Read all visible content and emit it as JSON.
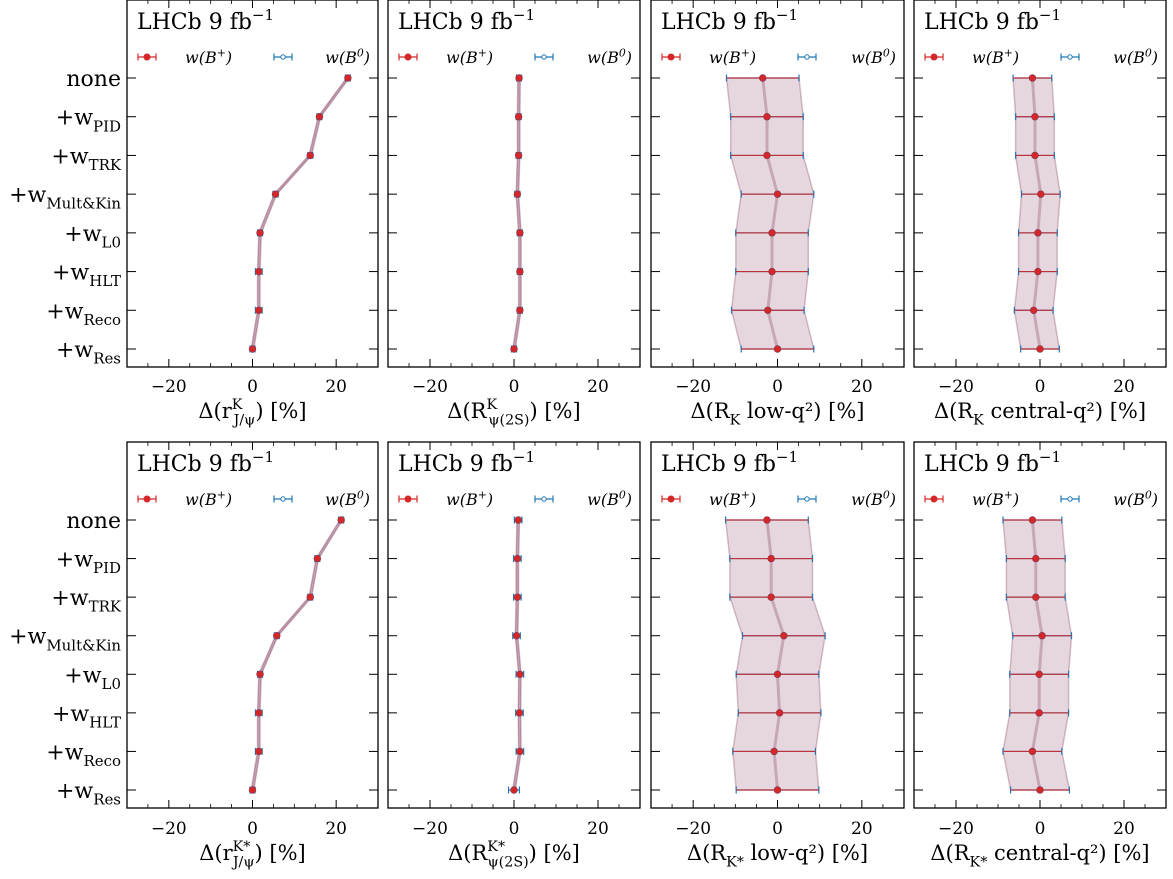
{
  "figure": {
    "categories_top": [
      "none",
      "+w_PID",
      "+w_TRK",
      "+w_Mult&Kin",
      "+w_L0",
      "+w_HLT",
      "+w_Reco",
      "+w_Res"
    ],
    "categories_bottom": [
      "none",
      "+w_PID",
      "+w_TRK",
      "+w_Mult&Kin",
      "+w_L0",
      "+w_HLT",
      "+w_Reco",
      "+w_Res"
    ],
    "colors": {
      "B_plus": "#d62728",
      "B_zero": "#1f77b4",
      "band": "#8c4a6a"
    }
  },
  "chart_data": [
    {
      "type": "scatter",
      "label": "LHCb 9 fb^-1",
      "xlabel": "Δ(r^K_J/ψ) [%]",
      "xlim": [
        -30,
        30
      ],
      "xticks": [
        -20,
        0,
        20
      ],
      "legend": [
        "w(B+)",
        "w(B0)"
      ],
      "legend_position": "top",
      "categories": [
        "none",
        "+w_PID",
        "+w_TRK",
        "+w_Mult&Kin",
        "+w_L0",
        "+w_HLT",
        "+w_Reco",
        "+w_Res"
      ],
      "series": [
        {
          "name": "w(B+)",
          "values": [
            22.8,
            16.0,
            13.8,
            5.5,
            1.8,
            1.5,
            1.5,
            0.0
          ],
          "errors": [
            0.3,
            0.3,
            0.3,
            0.3,
            0.3,
            0.3,
            0.3,
            0.3
          ]
        },
        {
          "name": "w(B0)",
          "values": [
            22.8,
            16.0,
            13.8,
            5.5,
            1.8,
            1.5,
            1.5,
            0.0
          ],
          "errors": [
            0.6,
            0.6,
            0.6,
            0.6,
            0.6,
            0.8,
            0.8,
            0.6
          ]
        }
      ]
    },
    {
      "type": "scatter",
      "label": "LHCb 9 fb^-1",
      "xlabel": "Δ(R^K_ψ(2S)) [%]",
      "xlim": [
        -30,
        30
      ],
      "xticks": [
        -20,
        0,
        20
      ],
      "legend": [
        "w(B+)",
        "w(B0)"
      ],
      "legend_position": "top",
      "categories": [
        "none",
        "+w_PID",
        "+w_TRK",
        "+w_Mult&Kin",
        "+w_L0",
        "+w_HLT",
        "+w_Reco",
        "+w_Res"
      ],
      "series": [
        {
          "name": "w(B+)",
          "values": [
            1.2,
            1.1,
            1.1,
            0.8,
            1.4,
            1.4,
            1.4,
            0.0
          ],
          "errors": [
            0.3,
            0.3,
            0.3,
            0.3,
            0.3,
            0.3,
            0.3,
            0.3
          ]
        },
        {
          "name": "w(B0)",
          "values": [
            1.2,
            1.1,
            1.1,
            0.8,
            1.4,
            1.4,
            1.4,
            0.0
          ],
          "errors": [
            0.6,
            0.6,
            0.6,
            0.6,
            0.6,
            0.6,
            0.6,
            0.6
          ]
        }
      ]
    },
    {
      "type": "scatter",
      "label": "LHCb 9 fb^-1",
      "xlabel": "Δ(R_K low-q²) [%]",
      "xlim": [
        -30,
        30
      ],
      "xticks": [
        -20,
        0,
        20
      ],
      "legend": [
        "w(B+)",
        "w(B0)"
      ],
      "legend_position": "top",
      "categories": [
        "none",
        "+w_PID",
        "+w_TRK",
        "+w_Mult&Kin",
        "+w_L0",
        "+w_HLT",
        "+w_Reco",
        "+w_Res"
      ],
      "series": [
        {
          "name": "w(B+)",
          "values": [
            -3.5,
            -2.5,
            -2.5,
            0.0,
            -1.3,
            -1.3,
            -2.3,
            0.0
          ],
          "errors": [
            8.6,
            8.6,
            8.6,
            8.6,
            8.6,
            8.6,
            8.6,
            8.6
          ]
        },
        {
          "name": "w(B0)",
          "values": [
            -3.5,
            -2.5,
            -2.5,
            0.0,
            -1.3,
            -1.3,
            -2.3,
            0.0
          ],
          "errors": [
            8.6,
            8.6,
            8.6,
            8.6,
            8.6,
            8.6,
            8.6,
            8.6
          ]
        }
      ]
    },
    {
      "type": "scatter",
      "label": "LHCb 9 fb^-1",
      "xlabel": "Δ(R_K central-q²) [%]",
      "xlim": [
        -30,
        30
      ],
      "xticks": [
        -20,
        0,
        20
      ],
      "legend": [
        "w(B+)",
        "w(B0)"
      ],
      "legend_position": "top",
      "categories": [
        "none",
        "+w_PID",
        "+w_TRK",
        "+w_Mult&Kin",
        "+w_L0",
        "+w_HLT",
        "+w_Reco",
        "+w_Res"
      ],
      "series": [
        {
          "name": "w(B+)",
          "values": [
            -1.8,
            -1.2,
            -1.2,
            0.2,
            -0.5,
            -0.5,
            -1.5,
            0.0
          ],
          "errors": [
            4.6,
            4.6,
            4.6,
            4.6,
            4.6,
            4.6,
            4.6,
            4.6
          ]
        },
        {
          "name": "w(B0)",
          "values": [
            -1.8,
            -1.2,
            -1.2,
            0.2,
            -0.5,
            -0.5,
            -1.5,
            0.0
          ],
          "errors": [
            4.6,
            4.6,
            4.6,
            4.6,
            4.6,
            4.6,
            4.6,
            4.6
          ]
        }
      ]
    },
    {
      "type": "scatter",
      "label": "LHCb 9 fb^-1",
      "xlabel": "Δ(r^K*_J/ψ) [%]",
      "xlim": [
        -30,
        30
      ],
      "xticks": [
        -20,
        0,
        20
      ],
      "legend": [
        "w(B+)",
        "w(B0)"
      ],
      "legend_position": "top",
      "categories": [
        "none",
        "+w_PID",
        "+w_TRK",
        "+w_Mult&Kin",
        "+w_L0",
        "+w_HLT",
        "+w_Reco",
        "+w_Res"
      ],
      "series": [
        {
          "name": "w(B+)",
          "values": [
            21.2,
            15.5,
            13.8,
            5.8,
            1.8,
            1.5,
            1.5,
            0.0
          ],
          "errors": [
            0.3,
            0.3,
            0.3,
            0.3,
            0.3,
            0.3,
            0.3,
            0.3
          ]
        },
        {
          "name": "w(B0)",
          "values": [
            21.2,
            15.5,
            13.8,
            5.8,
            1.8,
            1.5,
            1.5,
            0.0
          ],
          "errors": [
            0.6,
            0.6,
            0.6,
            0.6,
            0.6,
            0.8,
            0.8,
            0.6
          ]
        }
      ]
    },
    {
      "type": "scatter",
      "label": "LHCb 9 fb^-1",
      "xlabel": "Δ(R^K*_ψ(2S)) [%]",
      "xlim": [
        -30,
        30
      ],
      "xticks": [
        -20,
        0,
        20
      ],
      "legend": [
        "w(B+)",
        "w(B0)"
      ],
      "legend_position": "top",
      "categories": [
        "none",
        "+w_PID",
        "+w_TRK",
        "+w_Mult&Kin",
        "+w_L0",
        "+w_HLT",
        "+w_Reco",
        "+w_Res"
      ],
      "series": [
        {
          "name": "w(B+)",
          "values": [
            1.0,
            0.8,
            0.8,
            0.6,
            1.4,
            1.3,
            1.4,
            0.0
          ],
          "errors": [
            0.3,
            0.3,
            0.3,
            0.3,
            0.3,
            0.3,
            0.3,
            0.3
          ]
        },
        {
          "name": "w(B0)",
          "values": [
            1.0,
            0.8,
            0.8,
            0.6,
            1.4,
            1.3,
            1.4,
            0.0
          ],
          "errors": [
            0.9,
            0.9,
            0.9,
            0.9,
            0.9,
            0.9,
            0.9,
            1.3
          ]
        }
      ]
    },
    {
      "type": "scatter",
      "label": "LHCb 9 fb^-1",
      "xlabel": "Δ(R_K* low-q²) [%]",
      "xlim": [
        -30,
        30
      ],
      "xticks": [
        -20,
        0,
        20
      ],
      "legend": [
        "w(B+)",
        "w(B0)"
      ],
      "legend_position": "top",
      "categories": [
        "none",
        "+w_PID",
        "+w_TRK",
        "+w_Mult&Kin",
        "+w_L0",
        "+w_HLT",
        "+w_Reco",
        "+w_Res"
      ],
      "series": [
        {
          "name": "w(B+)",
          "values": [
            -2.5,
            -1.5,
            -1.5,
            1.5,
            0.0,
            0.5,
            -0.8,
            0.0
          ],
          "errors": [
            9.8,
            9.8,
            9.8,
            9.8,
            9.8,
            9.8,
            9.8,
            9.8
          ]
        },
        {
          "name": "w(B0)",
          "values": [
            -2.5,
            -1.5,
            -1.5,
            1.5,
            0.0,
            0.5,
            -0.8,
            0.0
          ],
          "errors": [
            9.8,
            9.8,
            9.8,
            9.8,
            9.8,
            9.8,
            9.8,
            9.8
          ]
        }
      ]
    },
    {
      "type": "scatter",
      "label": "LHCb 9 fb^-1",
      "xlabel": "Δ(R_K* central-q²) [%]",
      "xlim": [
        -30,
        30
      ],
      "xticks": [
        -20,
        0,
        20
      ],
      "legend": [
        "w(B+)",
        "w(B0)"
      ],
      "legend_position": "top",
      "categories": [
        "none",
        "+w_PID",
        "+w_TRK",
        "+w_Mult&Kin",
        "+w_L0",
        "+w_HLT",
        "+w_Reco",
        "+w_Res"
      ],
      "series": [
        {
          "name": "w(B+)",
          "values": [
            -1.8,
            -1.0,
            -1.0,
            0.5,
            -0.2,
            -0.2,
            -1.8,
            0.0
          ],
          "errors": [
            7.0,
            7.0,
            7.0,
            7.0,
            7.0,
            7.0,
            7.0,
            7.0
          ]
        },
        {
          "name": "w(B0)",
          "values": [
            -1.8,
            -1.0,
            -1.0,
            0.5,
            -0.2,
            -0.2,
            -1.8,
            0.0
          ],
          "errors": [
            7.0,
            7.0,
            7.0,
            7.0,
            7.0,
            7.0,
            7.0,
            7.0
          ]
        }
      ]
    }
  ]
}
